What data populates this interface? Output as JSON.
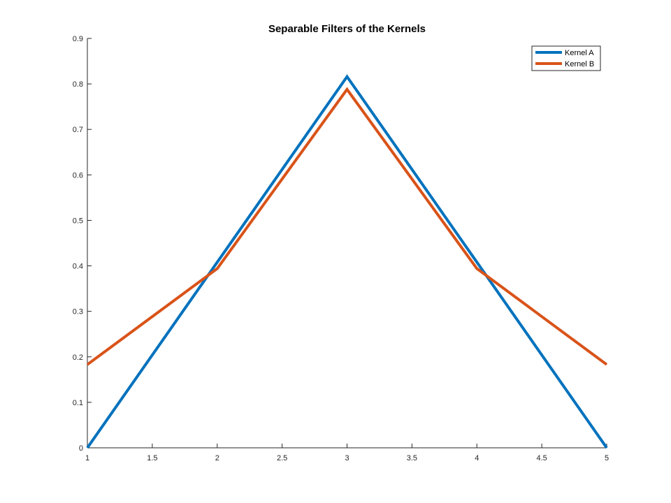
{
  "chart_data": {
    "type": "line",
    "title": "Separable Filters of the Kernels",
    "xlabel": "",
    "ylabel": "",
    "xlim": [
      1,
      5
    ],
    "ylim": [
      0,
      0.9
    ],
    "x_ticks": [
      "1",
      "1.5",
      "2",
      "2.5",
      "3",
      "3.5",
      "4",
      "4.5",
      "5"
    ],
    "y_ticks": [
      "0",
      "0.1",
      "0.2",
      "0.3",
      "0.4",
      "0.5",
      "0.6",
      "0.7",
      "0.8",
      "0.9"
    ],
    "x": [
      1,
      2,
      3,
      4,
      5
    ],
    "series": [
      {
        "name": "Kernel A",
        "color": "#0072BD",
        "values": [
          0.0,
          0.408,
          0.816,
          0.408,
          0.0
        ]
      },
      {
        "name": "Kernel B",
        "color": "#D95319",
        "values": [
          0.183,
          0.394,
          0.788,
          0.394,
          0.183
        ]
      }
    ],
    "grid": false,
    "legend_position": "top-right"
  }
}
